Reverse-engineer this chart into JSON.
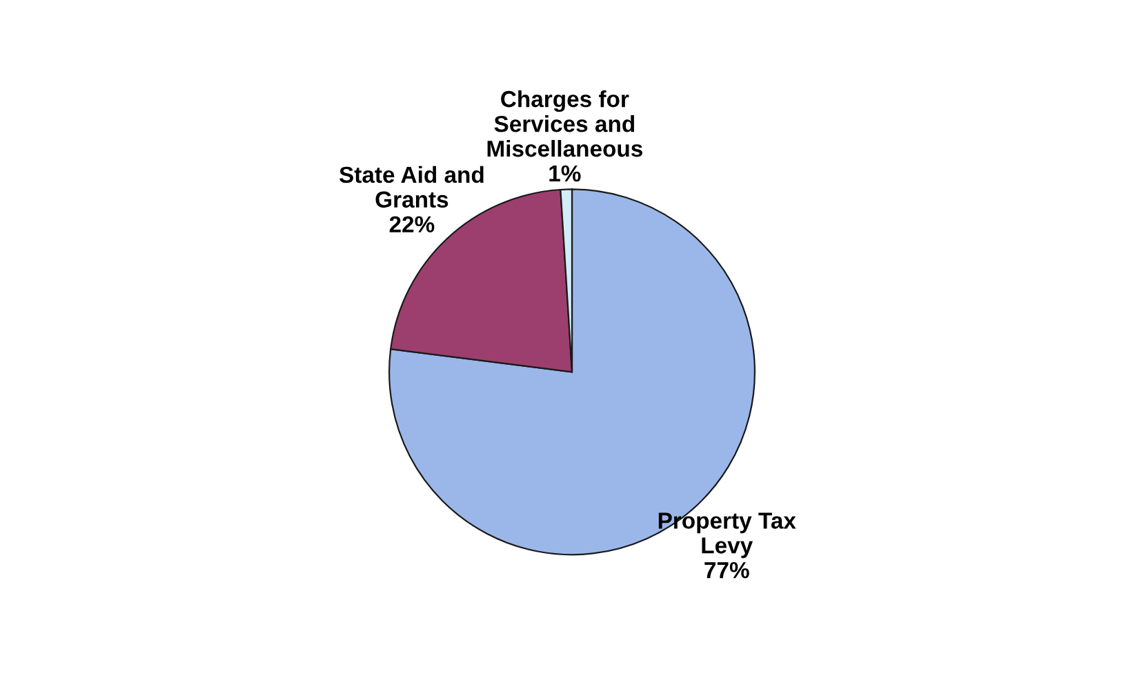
{
  "chart_data": {
    "type": "pie",
    "categories": [
      "Property Tax\nLevy",
      "State Aid and\nGrants",
      "Charges for\nServices and\nMiscellaneous"
    ],
    "values": [
      77,
      22,
      1
    ],
    "value_labels": [
      "77%",
      "22%",
      "1%"
    ],
    "colors": [
      "#9bb7ea",
      "#9c3f6e",
      "#d2ecf8"
    ]
  }
}
